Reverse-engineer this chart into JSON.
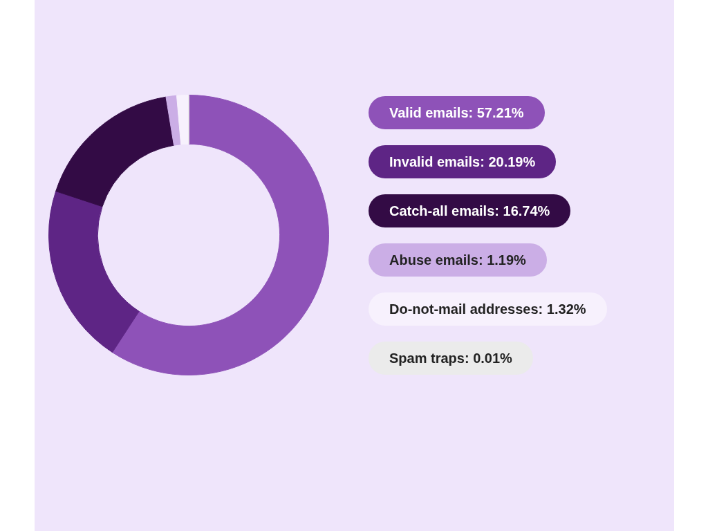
{
  "chart_data": {
    "type": "donut",
    "categories": [
      "Valid emails",
      "Invalid emails",
      "Catch-all emails",
      "Abuse emails",
      "Do-not-mail addresses",
      "Spam traps"
    ],
    "values": [
      57.21,
      20.19,
      16.74,
      1.19,
      1.32,
      0.01
    ],
    "value_labels": [
      "57.21%",
      "20.19%",
      "16.74%",
      "1.19%",
      "1.32%",
      "0.01%"
    ],
    "colors": [
      "#8e52b8",
      "#5e2585",
      "#330b45",
      "#cbaee6",
      "#f7f1fd",
      "#ebebeb"
    ],
    "legend": "right"
  }
}
